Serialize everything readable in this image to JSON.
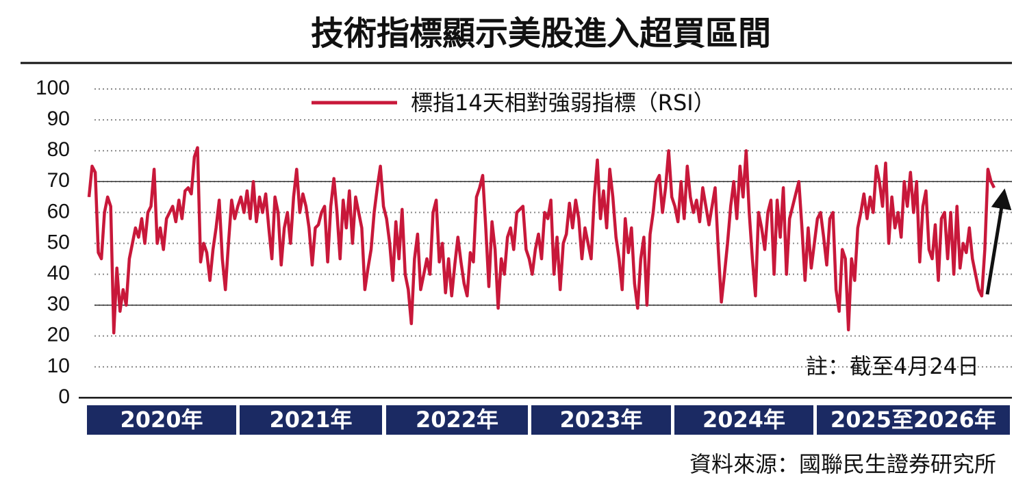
{
  "chart_data": {
    "type": "line",
    "title": "技術指標顯示美股進入超買區間",
    "note": "註：截至4月24日",
    "source": "資料來源：國聯民生證券研究所",
    "periods": [
      "2020年",
      "2021年",
      "2022年",
      "2023年",
      "2024年",
      "2025至2026年"
    ],
    "ylim": [
      0,
      100
    ],
    "yticks": [
      0,
      10,
      20,
      30,
      40,
      50,
      60,
      70,
      80,
      90,
      100
    ],
    "ref_lines": [
      30,
      70
    ],
    "grid": true,
    "series": [
      {
        "name": "標指14天相對強弱指標（RSI）",
        "color": "#c8183a",
        "values": [
          65,
          75,
          73,
          47,
          45,
          60,
          65,
          62,
          21,
          42,
          28,
          35,
          30,
          45,
          50,
          55,
          52,
          58,
          50,
          60,
          62,
          74,
          50,
          55,
          48,
          58,
          60,
          62,
          57,
          64,
          58,
          67,
          68,
          66,
          78,
          81,
          44,
          50,
          47,
          38,
          48,
          55,
          64,
          45,
          35,
          50,
          64,
          58,
          62,
          65,
          60,
          67,
          58,
          70,
          57,
          65,
          60,
          66,
          55,
          45,
          65,
          60,
          43,
          55,
          60,
          50,
          65,
          74,
          60,
          66,
          62,
          55,
          43,
          55,
          56,
          60,
          62,
          44,
          62,
          71,
          60,
          45,
          64,
          55,
          67,
          50,
          65,
          60,
          55,
          35,
          42,
          48,
          60,
          68,
          75,
          62,
          58,
          50,
          38,
          57,
          45,
          61,
          40,
          35,
          24,
          45,
          53,
          35,
          40,
          45,
          40,
          60,
          64,
          44,
          50,
          34,
          45,
          33,
          43,
          52,
          44,
          37,
          33,
          47,
          44,
          65,
          68,
          72,
          55,
          36,
          57,
          48,
          29,
          45,
          40,
          52,
          55,
          48,
          60,
          61,
          62,
          48,
          45,
          40,
          48,
          53,
          45,
          60,
          58,
          64,
          40,
          52,
          35,
          50,
          53,
          63,
          55,
          64,
          58,
          45,
          55,
          50,
          45,
          65,
          77,
          58,
          67,
          55,
          74,
          65,
          52,
          45,
          35,
          58,
          47,
          55,
          37,
          29,
          45,
          52,
          30,
          53,
          60,
          70,
          72,
          60,
          68,
          80,
          65,
          62,
          57,
          70,
          58,
          75,
          65,
          60,
          64,
          57,
          68,
          62,
          56,
          62,
          68,
          48,
          31,
          40,
          50,
          62,
          70,
          58,
          75,
          65,
          80,
          60,
          45,
          33,
          60,
          55,
          48,
          60,
          64,
          40,
          64,
          52,
          68,
          40,
          58,
          62,
          66,
          70,
          55,
          38,
          55,
          42,
          50,
          58,
          60,
          52,
          43,
          58,
          60,
          35,
          28,
          48,
          45,
          22,
          45,
          38,
          55,
          60,
          66,
          58,
          65,
          60,
          75,
          70,
          62,
          76,
          50,
          65,
          55,
          60,
          52,
          70,
          62,
          73,
          60,
          70,
          44,
          62,
          67,
          48,
          45,
          56,
          38,
          58,
          60,
          45,
          60,
          40,
          62,
          42,
          50,
          47,
          55,
          45,
          40,
          35,
          33,
          48,
          74,
          70,
          68
        ]
      }
    ]
  }
}
